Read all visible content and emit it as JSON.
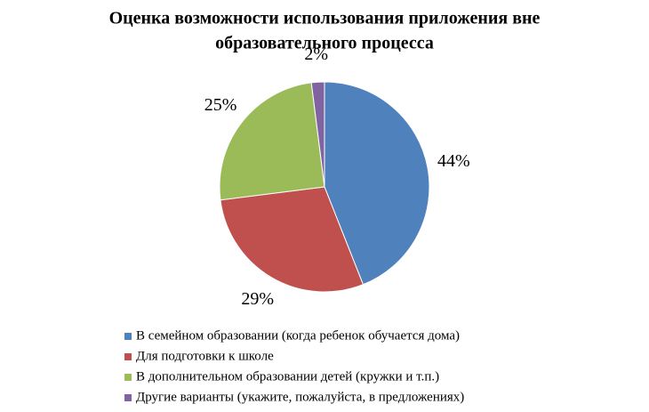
{
  "chart_data": {
    "type": "pie",
    "title": [
      "Оценка возможности использования  приложения вне",
      "образовательного  процесса"
    ],
    "categories": [
      "В семейном образовании (когда ребенок обучается дома)",
      "Для подготовки к школе",
      "В дополнительном образовании детей (кружки и т.п.)",
      "Другие варианты (укажите, пожалуйста,  в предложениях)"
    ],
    "values": [
      44,
      29,
      25,
      2
    ],
    "value_labels": [
      "44%",
      "29%",
      "25%",
      "2%"
    ],
    "colors": [
      "#4f81bd",
      "#c0504d",
      "#9bbb59",
      "#8064a2"
    ],
    "legend": "bottom"
  }
}
